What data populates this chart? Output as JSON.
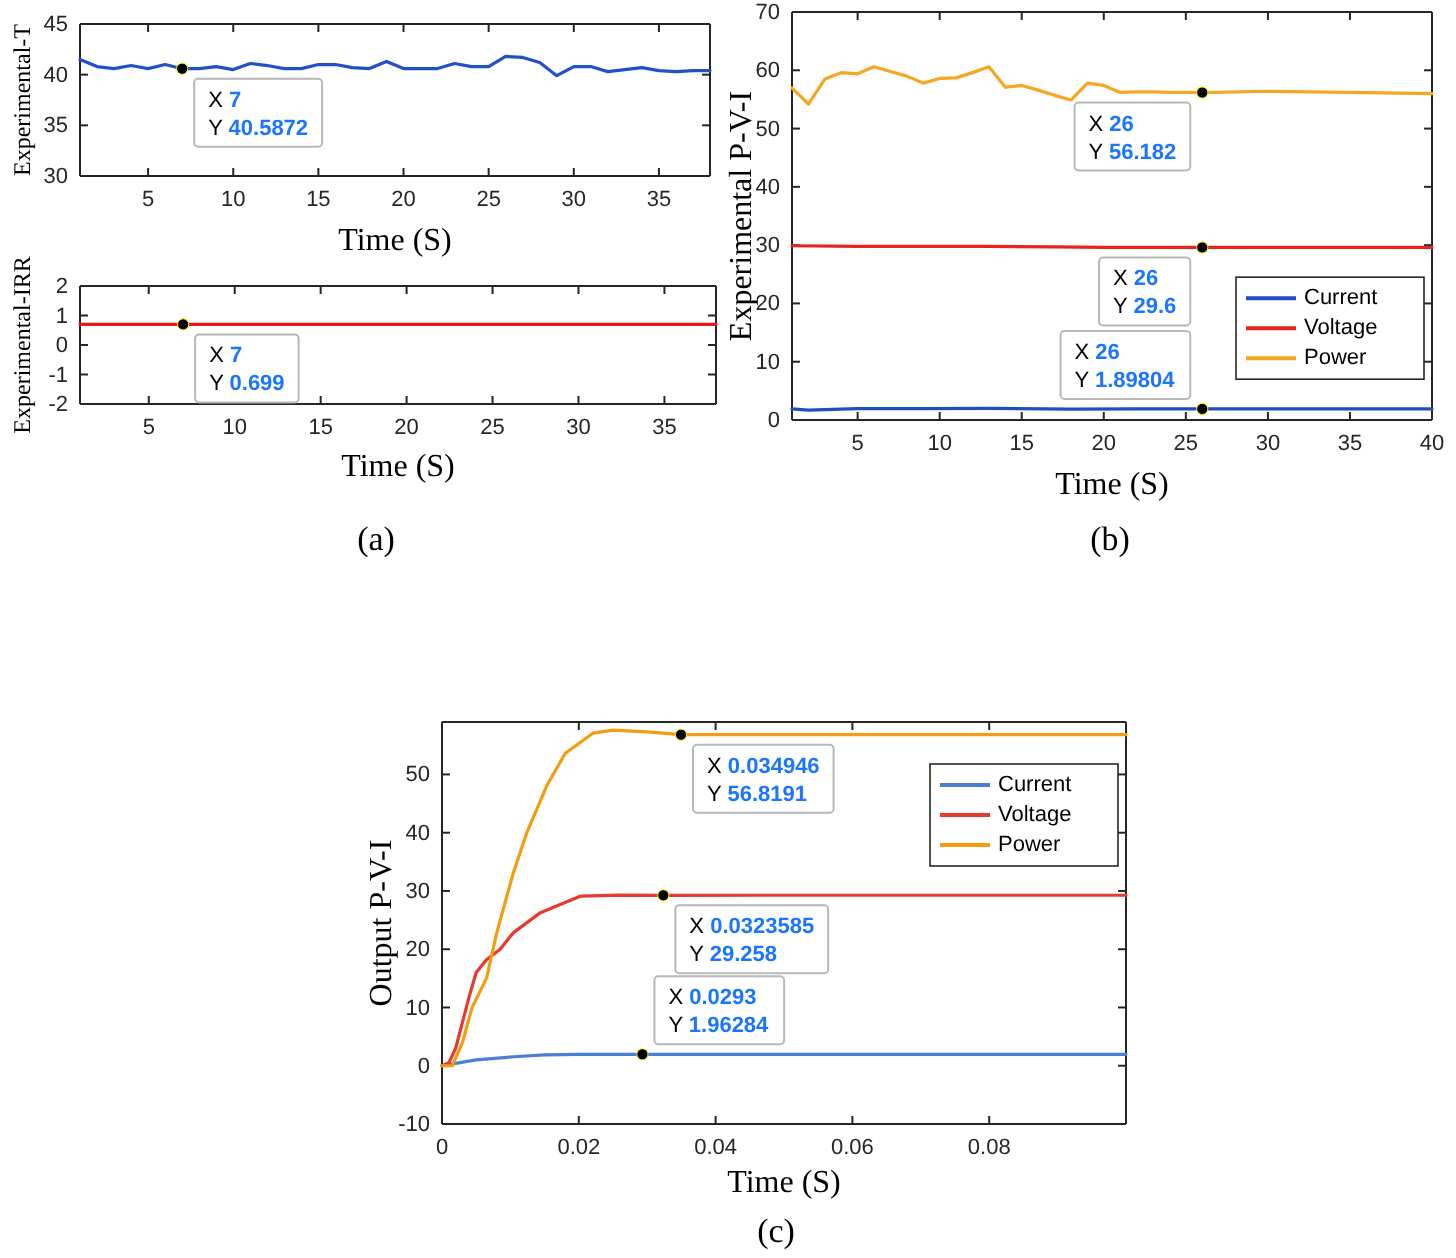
{
  "chart_data": [
    {
      "type": "line",
      "ylabel": "Experimental-T",
      "xlabel": "Time (S)",
      "xlim": [
        1,
        38
      ],
      "xticks": [
        5,
        10,
        15,
        20,
        25,
        30,
        35
      ],
      "ylim": [
        30,
        45
      ],
      "yticks": [
        30,
        35,
        40,
        45
      ],
      "grid": false,
      "legend": false,
      "marker": "none",
      "line_style": "solid",
      "series": [
        {
          "color": "#2250c8",
          "x": [
            1,
            2,
            3,
            4,
            5,
            6,
            7,
            8,
            9,
            10,
            11,
            12,
            13,
            14,
            15,
            16,
            17,
            18,
            19,
            20,
            21,
            22,
            23,
            24,
            25,
            26,
            27,
            28,
            29,
            30,
            31,
            32,
            33,
            34,
            35,
            36,
            37,
            38
          ],
          "values": [
            41.5,
            40.8,
            40.6,
            40.9,
            40.6,
            41.0,
            40.5872,
            40.6,
            40.8,
            40.5,
            41.1,
            40.9,
            40.6,
            40.6,
            41.0,
            41.0,
            40.7,
            40.6,
            41.3,
            40.6,
            40.6,
            40.6,
            41.1,
            40.8,
            40.8,
            41.8,
            41.7,
            41.2,
            39.9,
            40.8,
            40.8,
            40.3,
            40.5,
            40.7,
            40.4,
            40.3,
            40.4,
            40.4
          ]
        }
      ],
      "annotations": [
        {
          "text": "X 7\nY 40.5872",
          "x": 7,
          "y": 40.5872
        }
      ]
    },
    {
      "type": "line",
      "ylabel": "Experimental-IRR",
      "xlabel": "Time (S)",
      "xlim": [
        1,
        38
      ],
      "xticks": [
        5,
        10,
        15,
        20,
        25,
        30,
        35
      ],
      "ylim": [
        -2,
        2
      ],
      "yticks": [
        -2,
        -1,
        0,
        1,
        2
      ],
      "grid": false,
      "legend": false,
      "marker": "none",
      "line_style": "solid",
      "series": [
        {
          "color": "#e41a1c",
          "x": [
            1,
            7,
            38
          ],
          "values": [
            0.699,
            0.699,
            0.699
          ]
        }
      ],
      "annotations": [
        {
          "text": "X 7\nY 0.699",
          "x": 7,
          "y": 0.699
        },
        "(a)"
      ]
    },
    {
      "type": "line",
      "ylabel": "Experimental P-V-I",
      "xlabel": "Time (S)",
      "xlim": [
        1,
        40
      ],
      "xticks": [
        5,
        10,
        15,
        20,
        25,
        30,
        35,
        40
      ],
      "ylim": [
        0,
        70
      ],
      "yticks": [
        0,
        10,
        20,
        30,
        40,
        50,
        60,
        70
      ],
      "grid": false,
      "legend": "right",
      "marker": "none",
      "line_style": "solid",
      "series": [
        {
          "name": "Current",
          "color": "#1f4ec4",
          "x": [
            1,
            2,
            5,
            9,
            13,
            18,
            22,
            26,
            30,
            35,
            40
          ],
          "values": [
            1.9,
            1.7,
            1.95,
            1.95,
            2.0,
            1.85,
            1.9,
            1.89804,
            1.9,
            1.9,
            1.9
          ]
        },
        {
          "name": "Voltage",
          "color": "#e8231f",
          "x": [
            1,
            5,
            10,
            13,
            17,
            20,
            26,
            30,
            35,
            40
          ],
          "values": [
            29.9,
            29.8,
            29.8,
            29.8,
            29.7,
            29.6,
            29.6,
            29.6,
            29.6,
            29.6
          ]
        },
        {
          "name": "Power",
          "color": "#f5a623",
          "x": [
            1,
            2,
            3,
            4,
            5,
            6,
            7,
            8,
            9,
            10,
            11,
            12,
            13,
            14,
            15,
            16,
            17,
            18,
            19,
            20,
            21,
            22,
            23,
            24,
            25,
            26,
            30,
            35,
            40
          ],
          "values": [
            57.0,
            54.2,
            58.5,
            59.6,
            59.4,
            60.6,
            59.8,
            59.0,
            57.8,
            58.6,
            58.7,
            59.6,
            60.6,
            57.1,
            57.4,
            56.6,
            55.7,
            54.9,
            57.8,
            57.4,
            56.2,
            56.3,
            56.3,
            56.2,
            56.2,
            56.182,
            56.4,
            56.2,
            56.0
          ]
        }
      ],
      "annotations": [
        {
          "text": "X 26\nY 56.182",
          "x": 26,
          "y": 56.182
        },
        {
          "text": "X 26\nY 29.6",
          "x": 26,
          "y": 29.6
        },
        {
          "text": "X 26\nY 1.89804",
          "x": 26,
          "y": 1.89804
        },
        "(b)"
      ]
    },
    {
      "type": "line",
      "ylabel": "Output P-V-I",
      "xlabel": "Time (S)",
      "xlim": [
        0,
        0.1
      ],
      "xticks": [
        0,
        0.02,
        0.04,
        0.06,
        0.08
      ],
      "ylim": [
        -10,
        59
      ],
      "yticks": [
        -10,
        0,
        10,
        20,
        30,
        40,
        50
      ],
      "grid": false,
      "legend": "right",
      "marker": "none",
      "line_style": "solid",
      "series": [
        {
          "name": "Current",
          "color": "#4a7fd6",
          "x": [
            0,
            0.002,
            0.005,
            0.01,
            0.015,
            0.02,
            0.0293,
            0.05,
            0.1
          ],
          "values": [
            0,
            0.4,
            1.0,
            1.5,
            1.85,
            1.95,
            1.96284,
            1.963,
            1.963
          ]
        },
        {
          "name": "Voltage",
          "color": "#e63a2e",
          "x": [
            0,
            0.001,
            0.002,
            0.004,
            0.005,
            0.0065,
            0.0085,
            0.0104,
            0.0143,
            0.0202,
            0.026,
            0.0323585,
            0.06,
            0.1
          ],
          "values": [
            0,
            0.5,
            3,
            12,
            16,
            18.2,
            20,
            22.8,
            26.2,
            29.1,
            29.3,
            29.258,
            29.26,
            29.26
          ]
        },
        {
          "name": "Power",
          "color": "#f39c12",
          "x": [
            0,
            0.0015,
            0.003,
            0.0044,
            0.0065,
            0.008,
            0.0104,
            0.0124,
            0.0153,
            0.018,
            0.0221,
            0.025,
            0.03,
            0.034946,
            0.06,
            0.1
          ],
          "values": [
            0,
            0,
            4,
            10,
            15,
            22.8,
            33,
            40,
            48,
            53.6,
            57.1,
            57.6,
            57.3,
            56.8191,
            56.82,
            56.82
          ]
        }
      ],
      "annotations": [
        {
          "text": "X 0.034946\nY 56.8191",
          "x": 0.034946,
          "y": 56.8191
        },
        {
          "text": "X 0.0323585\nY 29.258",
          "x": 0.0323585,
          "y": 29.258
        },
        {
          "text": "X 0.0293\nY 1.96284",
          "x": 0.0293,
          "y": 1.96284
        },
        "(c)"
      ]
    }
  ]
}
